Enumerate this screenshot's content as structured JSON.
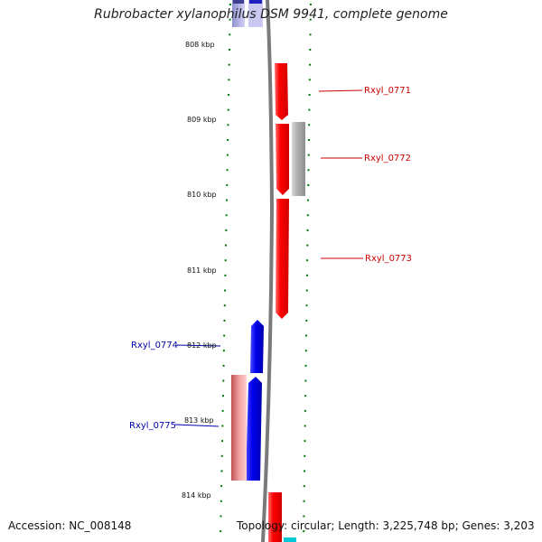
{
  "title": "Rubrobacter xylanophilus DSM 9941, complete genome",
  "footer": {
    "accession": "Accession: NC_008148",
    "summary": "Topology: circular; Length: 3,225,748 bp; Genes: 3,203"
  },
  "scale": {
    "unit": "kbp",
    "ticks": [
      {
        "value": 808,
        "label": "808 kbp"
      },
      {
        "value": 809,
        "label": "809 kbp"
      },
      {
        "value": 810,
        "label": "810 kbp"
      },
      {
        "value": 811,
        "label": "811 kbp"
      },
      {
        "value": 812,
        "label": "812 kbp"
      },
      {
        "value": 813,
        "label": "813 kbp"
      },
      {
        "value": 814,
        "label": "814 kbp"
      }
    ]
  },
  "genes": [
    {
      "id": "Rxyl_0771",
      "label": "Rxyl_0771",
      "strand": "+",
      "color": "#ff0000",
      "label_color": "#cc0000"
    },
    {
      "id": "Rxyl_0772",
      "label": "Rxyl_0772",
      "strand": "+",
      "color": "#ff0000",
      "label_color": "#cc0000"
    },
    {
      "id": "Rxyl_0773",
      "label": "Rxyl_0773",
      "strand": "+",
      "color": "#ff0000",
      "label_color": "#cc0000"
    },
    {
      "id": "Rxyl_0774",
      "label": "Rxyl_0774",
      "strand": "-",
      "color": "#0000ee",
      "label_color": "#0000aa"
    },
    {
      "id": "Rxyl_0775",
      "label": "Rxyl_0775",
      "strand": "-",
      "color": "#0000ee",
      "label_color": "#0000aa"
    }
  ],
  "colors": {
    "forward": "#ff0000",
    "reverse": "#0000ee",
    "backbone": "#808080",
    "ticks": "#007700",
    "grey_feature": "#aaaaaa",
    "pink_feature": "#e07070"
  }
}
